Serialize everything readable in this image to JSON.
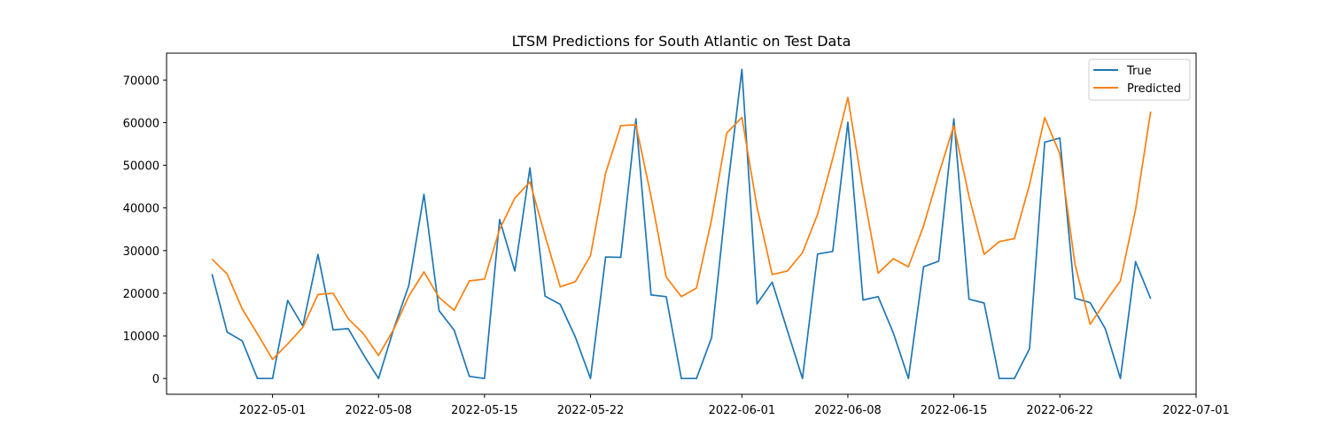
{
  "chart_data": {
    "type": "line",
    "title": "LTSM Predictions for South Atlantic on Test Data",
    "xlabel": "",
    "ylabel": "",
    "x_start_date": "2022-04-27",
    "x_end_date": "2022-06-29",
    "xlim": [
      "2022-04-24",
      "2022-07-01"
    ],
    "ylim": [
      -3700,
      76300
    ],
    "y_ticks": [
      0,
      10000,
      20000,
      30000,
      40000,
      50000,
      60000,
      70000
    ],
    "x_ticks": [
      "2022-05-01",
      "2022-05-08",
      "2022-05-15",
      "2022-05-22",
      "2022-06-01",
      "2022-06-08",
      "2022-06-15",
      "2022-06-22",
      "2022-07-01"
    ],
    "legend_position": "top-right",
    "grid": false,
    "series": [
      {
        "name": "True",
        "color": "#1f77b4",
        "values": [
          24500,
          10900,
          8800,
          0,
          0,
          18300,
          12300,
          29100,
          11400,
          11700,
          5600,
          0,
          11600,
          21800,
          43200,
          15900,
          11300,
          500,
          0,
          37300,
          25200,
          49400,
          19300,
          17400,
          9700,
          0,
          28500,
          28400,
          60900,
          19600,
          19200,
          0,
          0,
          9600,
          43000,
          72500,
          17500,
          22600,
          11300,
          0,
          29200,
          29800,
          60100,
          18400,
          19200,
          10700,
          0,
          26200,
          27500,
          60900,
          18600,
          17700,
          0,
          0,
          7000,
          55400,
          56400,
          18800,
          17800,
          11700,
          0,
          27400,
          18700
        ]
      },
      {
        "name": "Predicted",
        "color": "#ff7f0e",
        "values": [
          28000,
          24500,
          16300,
          10500,
          4500,
          8100,
          12000,
          19700,
          20000,
          14000,
          10500,
          5400,
          11500,
          19300,
          25000,
          19000,
          16000,
          22900,
          23300,
          35000,
          42300,
          46100,
          33500,
          21500,
          22700,
          28800,
          48200,
          59300,
          59500,
          42700,
          23800,
          19200,
          21200,
          37300,
          57600,
          61200,
          40200,
          24400,
          25200,
          29500,
          38500,
          51600,
          65900,
          44100,
          24700,
          28100,
          26200,
          35800,
          47900,
          59300,
          42700,
          29100,
          32100,
          32800,
          45500,
          61200,
          52700,
          26800,
          12700,
          17900,
          22900,
          39600,
          62600
        ]
      }
    ]
  }
}
